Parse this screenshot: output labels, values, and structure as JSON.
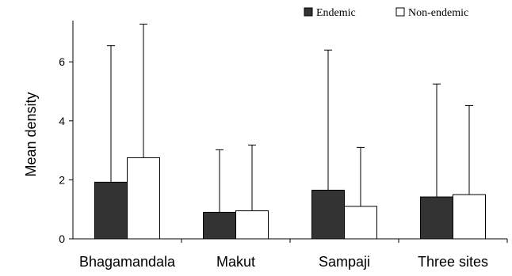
{
  "chart_data": {
    "type": "bar",
    "categories": [
      "Bhagamandala",
      "Makut",
      "Sampaji",
      "Three sites"
    ],
    "series": [
      {
        "name": "Endemic",
        "values": [
          1.92,
          0.9,
          1.65,
          1.42
        ],
        "error_upper": [
          6.55,
          3.02,
          6.4,
          5.25
        ],
        "color": "#333333"
      },
      {
        "name": "Non-endemic",
        "values": [
          2.75,
          0.95,
          1.1,
          1.5
        ],
        "error_upper": [
          7.28,
          3.18,
          3.1,
          4.52
        ],
        "color": "#ffffff"
      }
    ],
    "xlabel": "",
    "ylabel": "Mean density",
    "ylim": [
      0,
      7.4
    ],
    "yticks": [
      0,
      2,
      4,
      6
    ],
    "legend_position": "top-right",
    "grid": false
  }
}
